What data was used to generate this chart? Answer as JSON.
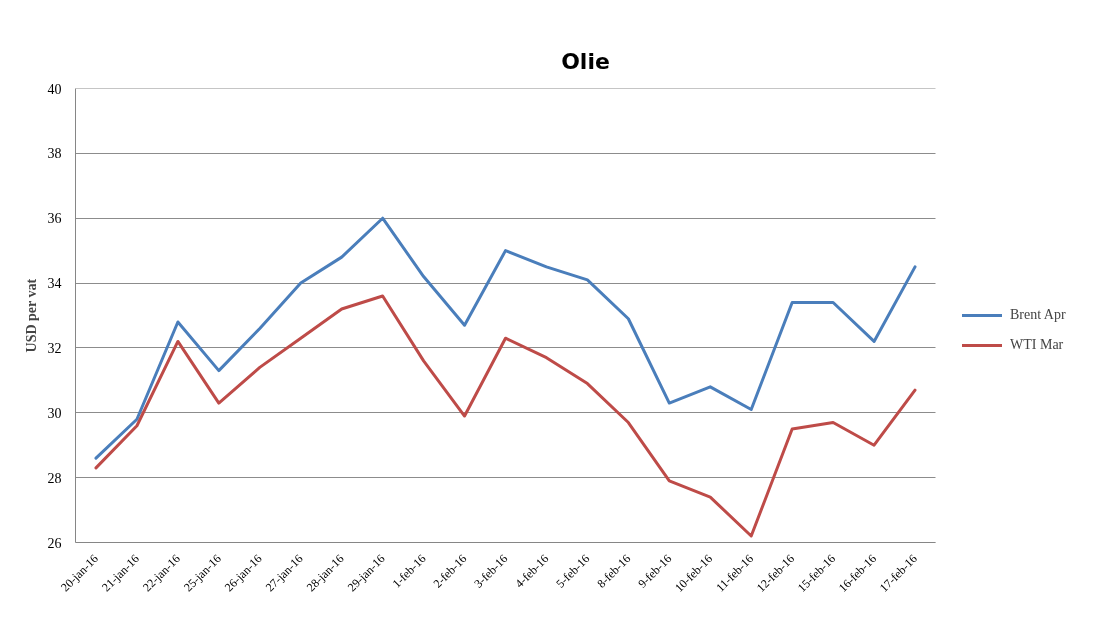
{
  "chart_data": {
    "type": "line",
    "title": "Olie",
    "ylabel": "USD per vat",
    "categories": [
      "20-jan-16",
      "21-jan-16",
      "22-jan-16",
      "25-jan-16",
      "26-jan-16",
      "27-jan-16",
      "28-jan-16",
      "29-jan-16",
      "1-feb-16",
      "2-feb-16",
      "3-feb-16",
      "4-feb-16",
      "5-feb-16",
      "8-feb-16",
      "9-feb-16",
      "10-feb-16",
      "11-feb-16",
      "12-feb-16",
      "15-feb-16",
      "16-feb-16",
      "17-feb-16"
    ],
    "series": [
      {
        "name": "Brent Apr",
        "color": "#4a7ebb",
        "values": [
          28.6,
          29.8,
          32.8,
          31.3,
          32.6,
          34.0,
          34.8,
          36.0,
          34.2,
          32.7,
          35.0,
          34.5,
          34.1,
          32.9,
          30.3,
          30.8,
          30.1,
          33.4,
          33.4,
          32.2,
          34.5
        ]
      },
      {
        "name": "WTI Mar",
        "color": "#be4b48",
        "values": [
          28.3,
          29.6,
          32.2,
          30.3,
          31.4,
          32.3,
          33.2,
          33.6,
          31.6,
          29.9,
          32.3,
          31.7,
          30.9,
          29.7,
          27.9,
          27.4,
          26.2,
          29.5,
          29.7,
          29.0,
          30.7
        ]
      }
    ],
    "ylim": [
      26,
      40
    ],
    "yticks": [
      26,
      28,
      30,
      32,
      34,
      36,
      38,
      40
    ],
    "grid": "y",
    "legend": "right"
  }
}
